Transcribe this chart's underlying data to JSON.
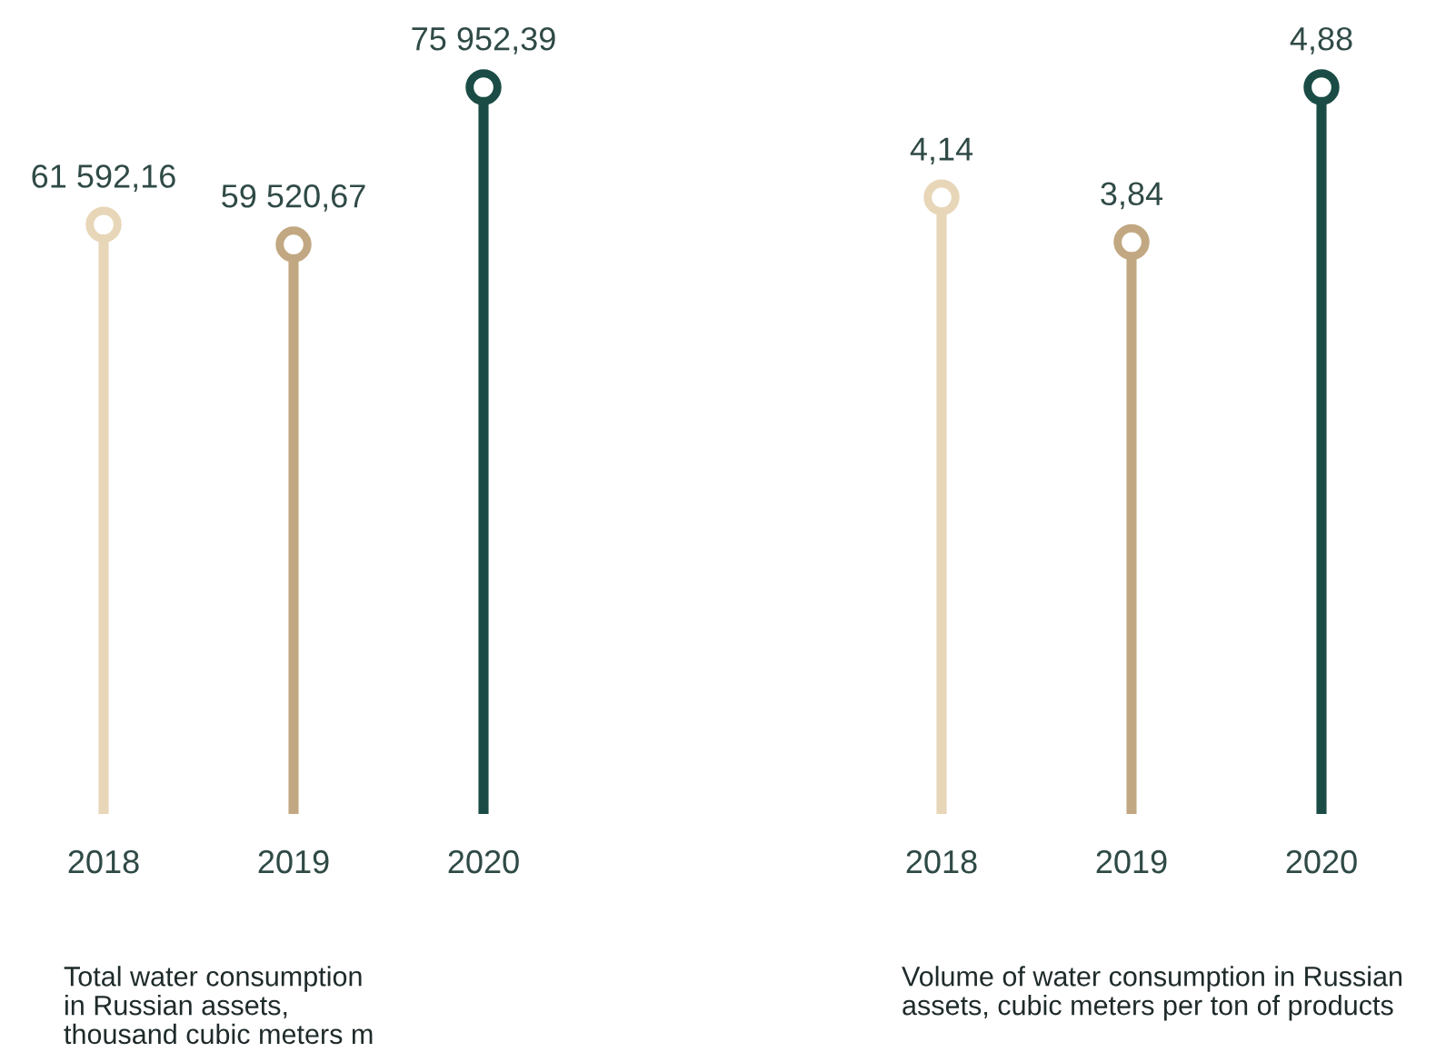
{
  "chart_data": [
    {
      "type": "lollipop",
      "categories": [
        "2018",
        "2019",
        "2020"
      ],
      "values": [
        61592.16,
        59520.67,
        75952.39
      ],
      "value_labels": [
        "61 592,16",
        "59 520,67",
        "75 952,39"
      ],
      "colors": [
        "#e8d6b8",
        "#c2a882",
        "#1a4c45"
      ],
      "marker": "circle",
      "tick_labels": "x",
      "xlabel": "Total water consumption\nin Russian assets,\nthousand cubic meters m"
    },
    {
      "type": "lollipop",
      "categories": [
        "2018",
        "2019",
        "2020"
      ],
      "values": [
        4.14,
        3.84,
        4.88
      ],
      "value_labels": [
        "4,14",
        "3,84",
        "4,88"
      ],
      "colors": [
        "#e8d6b8",
        "#c2a882",
        "#1a4c45"
      ],
      "marker": "circle",
      "tick_labels": "x",
      "xlabel": "Volume of water consumption in Russian\nassets, cubic meters per ton of products"
    }
  ]
}
